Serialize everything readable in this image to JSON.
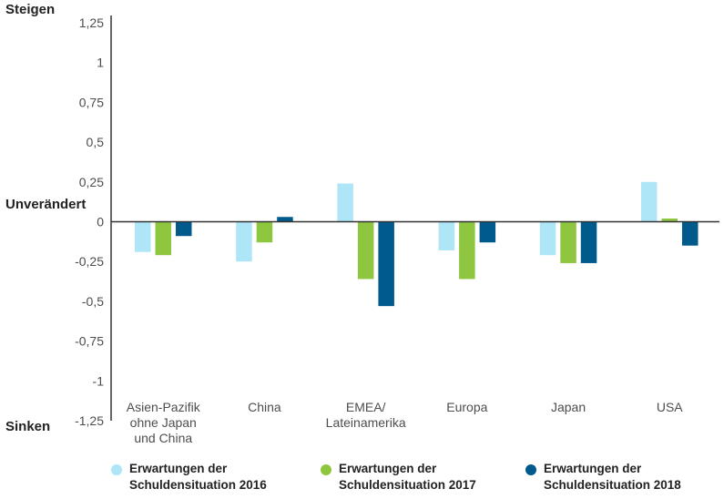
{
  "labels": {
    "top": "Steigen",
    "middle": "Unverändert",
    "bottom": "Sinken"
  },
  "colors": {
    "series_2016": "#aee6f7",
    "series_2017": "#8ec63f",
    "series_2018": "#005a8c",
    "axis": "#333333"
  },
  "chart_data": {
    "type": "bar",
    "title": "",
    "xlabel": "",
    "ylabel": "",
    "ylim": [
      -1.25,
      1.25
    ],
    "yticks": [
      {
        "value": 1.25,
        "label": "1,25"
      },
      {
        "value": 1,
        "label": "1"
      },
      {
        "value": 0.75,
        "label": "0,75"
      },
      {
        "value": 0.5,
        "label": "0,5"
      },
      {
        "value": 0.25,
        "label": "0,25"
      },
      {
        "value": 0,
        "label": "0"
      },
      {
        "value": -0.25,
        "label": "-0,25"
      },
      {
        "value": -0.5,
        "label": "-0,5"
      },
      {
        "value": -0.75,
        "label": "-0,75"
      },
      {
        "value": -1,
        "label": "-1"
      },
      {
        "value": -1.25,
        "label": "-1,25"
      }
    ],
    "categories": [
      [
        "Asien-Pazifik",
        "ohne Japan",
        "und China"
      ],
      [
        "China"
      ],
      [
        "EMEA/",
        "Lateinamerika"
      ],
      [
        "Europa"
      ],
      [
        "Japan"
      ],
      [
        "USA"
      ]
    ],
    "series": [
      {
        "name": [
          "Erwartungen der",
          "Schuldensituation 2016"
        ],
        "color": "#aee6f7",
        "values": [
          -0.19,
          -0.25,
          0.24,
          -0.18,
          -0.21,
          0.25
        ]
      },
      {
        "name": [
          "Erwartungen der",
          "Schuldensituation 2017"
        ],
        "color": "#8ec63f",
        "values": [
          -0.21,
          -0.13,
          -0.36,
          -0.36,
          -0.26,
          0.02
        ]
      },
      {
        "name": [
          "Erwartungen der",
          "Schuldensituation 2018"
        ],
        "color": "#005a8c",
        "values": [
          -0.09,
          0.03,
          -0.53,
          -0.13,
          -0.26,
          -0.15
        ]
      }
    ],
    "legend_position": "bottom"
  }
}
